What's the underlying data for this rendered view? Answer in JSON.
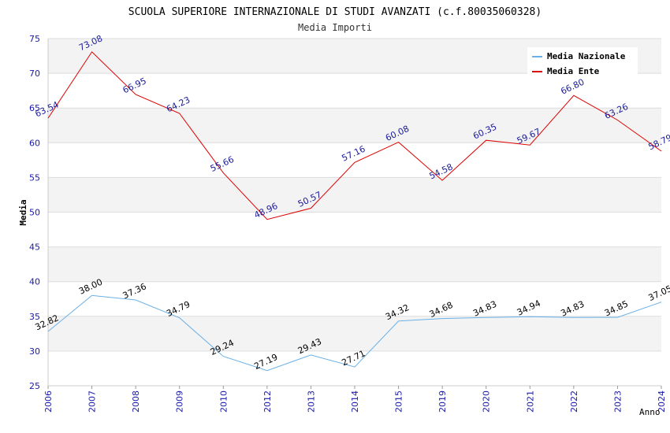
{
  "chart_data": {
    "type": "line",
    "title": "SCUOLA SUPERIORE INTERNAZIONALE DI STUDI AVANZATI (c.f.80035060328)",
    "subtitle": "Media Importi",
    "xlabel": "Anno",
    "ylabel": "Media",
    "ylim": [
      25,
      75
    ],
    "yticks": [
      "25",
      "30",
      "35",
      "40",
      "45",
      "50",
      "55",
      "60",
      "65",
      "70",
      "75"
    ],
    "categories": [
      "2006",
      "2007",
      "2008",
      "2009",
      "2010",
      "2012",
      "2013",
      "2014",
      "2015",
      "2019",
      "2020",
      "2021",
      "2022",
      "2023",
      "2024"
    ],
    "legend_position": "top-right",
    "series": [
      {
        "name": "Media Nazionale",
        "color": "#6ab0e6",
        "label_color": "#000000",
        "values": [
          32.82,
          38.0,
          37.36,
          34.79,
          29.24,
          27.19,
          29.43,
          27.71,
          34.32,
          34.68,
          34.83,
          34.94,
          34.83,
          34.85,
          37.05
        ],
        "labels": [
          "32.82",
          "38.00",
          "37.36",
          "34.79",
          "29.24",
          "27.19",
          "29.43",
          "27.71",
          "34.32",
          "34.68",
          "34.83",
          "34.94",
          "34.83",
          "34.85",
          "37.05"
        ]
      },
      {
        "name": "Media Ente",
        "color": "#e00000",
        "label_color": "#1a1a9a",
        "values": [
          63.54,
          73.08,
          66.95,
          64.23,
          55.66,
          48.96,
          50.57,
          57.16,
          60.08,
          54.58,
          60.35,
          59.67,
          66.8,
          63.26,
          58.79
        ],
        "labels": [
          "63.54",
          "73.08",
          "66.95",
          "64.23",
          "55.66",
          "48.96",
          "50.57",
          "57.16",
          "60.08",
          "54.58",
          "60.35",
          "59.67",
          "66.80",
          "63.26",
          "58.79"
        ]
      }
    ]
  }
}
